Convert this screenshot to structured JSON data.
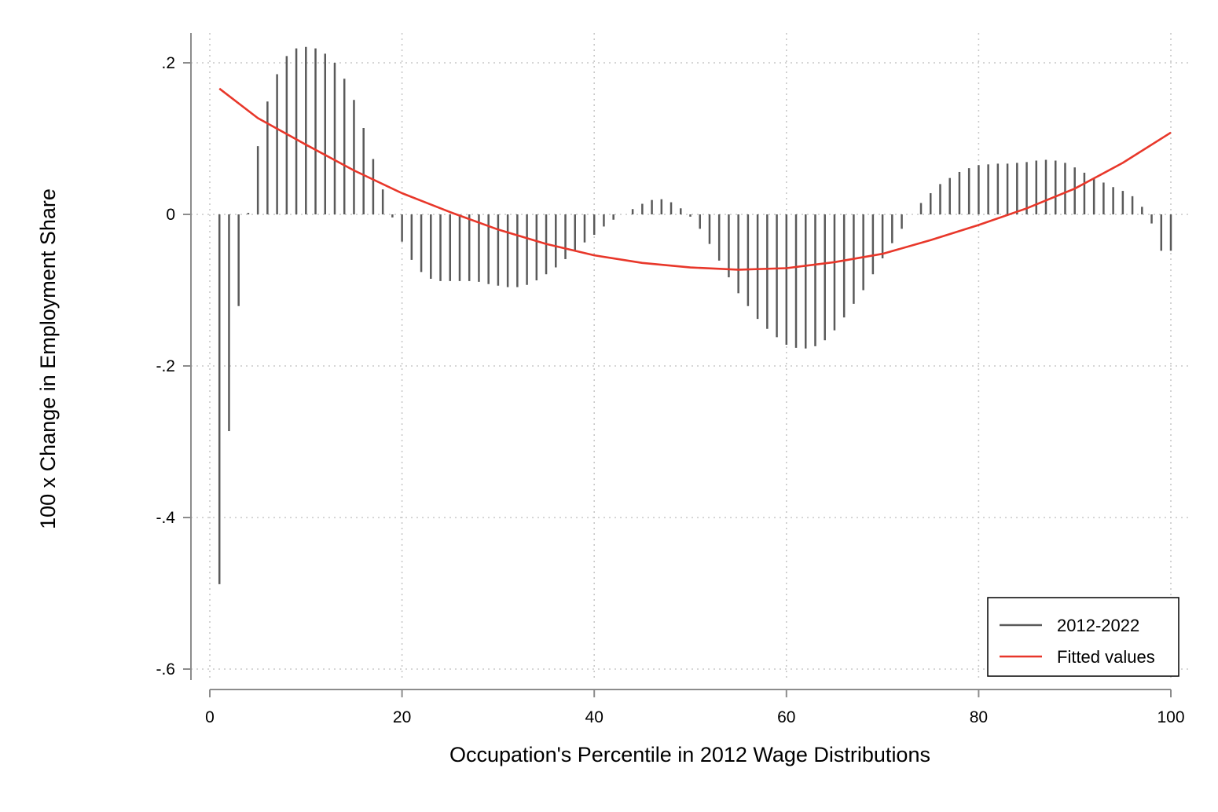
{
  "chart_data": {
    "type": "bar",
    "xlabel": "Occupation's Percentile in 2012 Wage Distributions",
    "ylabel": "100 x Change in Employment Share",
    "xlim": [
      0,
      100
    ],
    "ylim": [
      -0.62,
      0.24
    ],
    "x_ticks": [
      0,
      20,
      40,
      60,
      80,
      100
    ],
    "x_tick_labels": [
      "0",
      "20",
      "40",
      "60",
      "80",
      "100"
    ],
    "y_ticks": [
      0.2,
      0,
      -0.2,
      -0.4,
      -0.6
    ],
    "y_tick_labels": [
      ".2",
      "0",
      "-.2",
      "-.4",
      "-.6"
    ],
    "grid": true,
    "legend_position": "bottom-right",
    "colors": {
      "bars": "#5a5a5a",
      "fitted": "#e8372a",
      "grid": "#c8c8c8",
      "axis": "#8c8c8c"
    },
    "series": [
      {
        "name": "2012-2022",
        "kind": "spike",
        "x": [
          1,
          2,
          3,
          4,
          5,
          6,
          7,
          8,
          9,
          10,
          11,
          12,
          13,
          14,
          15,
          16,
          17,
          18,
          19,
          20,
          21,
          22,
          23,
          24,
          25,
          26,
          27,
          28,
          29,
          30,
          31,
          32,
          33,
          34,
          35,
          36,
          37,
          38,
          39,
          40,
          41,
          42,
          43,
          44,
          45,
          46,
          47,
          48,
          49,
          50,
          51,
          52,
          53,
          54,
          55,
          56,
          57,
          58,
          59,
          60,
          61,
          62,
          63,
          64,
          65,
          66,
          67,
          68,
          69,
          70,
          71,
          72,
          73,
          74,
          75,
          76,
          77,
          78,
          79,
          80,
          81,
          82,
          83,
          84,
          85,
          86,
          87,
          88,
          89,
          90,
          91,
          92,
          93,
          94,
          95,
          96,
          97,
          98,
          99,
          100
        ],
        "values": [
          -0.488,
          -0.286,
          -0.121,
          0.002,
          0.09,
          0.149,
          0.185,
          0.209,
          0.219,
          0.221,
          0.219,
          0.212,
          0.2,
          0.179,
          0.151,
          0.114,
          0.073,
          0.033,
          -0.004,
          -0.036,
          -0.06,
          -0.076,
          -0.085,
          -0.088,
          -0.088,
          -0.088,
          -0.088,
          -0.089,
          -0.092,
          -0.094,
          -0.096,
          -0.096,
          -0.093,
          -0.087,
          -0.079,
          -0.07,
          -0.059,
          -0.048,
          -0.037,
          -0.027,
          -0.016,
          -0.007,
          0.0,
          0.007,
          0.014,
          0.019,
          0.02,
          0.016,
          0.008,
          -0.003,
          -0.019,
          -0.039,
          -0.061,
          -0.083,
          -0.104,
          -0.121,
          -0.138,
          -0.151,
          -0.162,
          -0.172,
          -0.176,
          -0.177,
          -0.174,
          -0.166,
          -0.153,
          -0.136,
          -0.118,
          -0.1,
          -0.079,
          -0.058,
          -0.038,
          -0.019,
          0.0,
          0.015,
          0.028,
          0.04,
          0.048,
          0.056,
          0.061,
          0.065,
          0.066,
          0.067,
          0.067,
          0.068,
          0.069,
          0.071,
          0.072,
          0.071,
          0.068,
          0.062,
          0.055,
          0.047,
          0.042,
          0.036,
          0.031,
          0.024,
          0.01,
          -0.012,
          -0.048,
          -0.048
        ]
      },
      {
        "name": "Fitted values",
        "kind": "line",
        "x": [
          1,
          5,
          10,
          15,
          20,
          25,
          30,
          35,
          40,
          45,
          50,
          55,
          60,
          65,
          70,
          75,
          80,
          85,
          90,
          95,
          100
        ],
        "values": [
          0.166,
          0.127,
          0.092,
          0.058,
          0.028,
          0.003,
          -0.02,
          -0.039,
          -0.054,
          -0.064,
          -0.07,
          -0.073,
          -0.071,
          -0.063,
          -0.052,
          -0.034,
          -0.014,
          0.008,
          0.034,
          0.068,
          0.108
        ]
      }
    ],
    "legend": [
      "2012-2022",
      "Fitted values"
    ]
  }
}
